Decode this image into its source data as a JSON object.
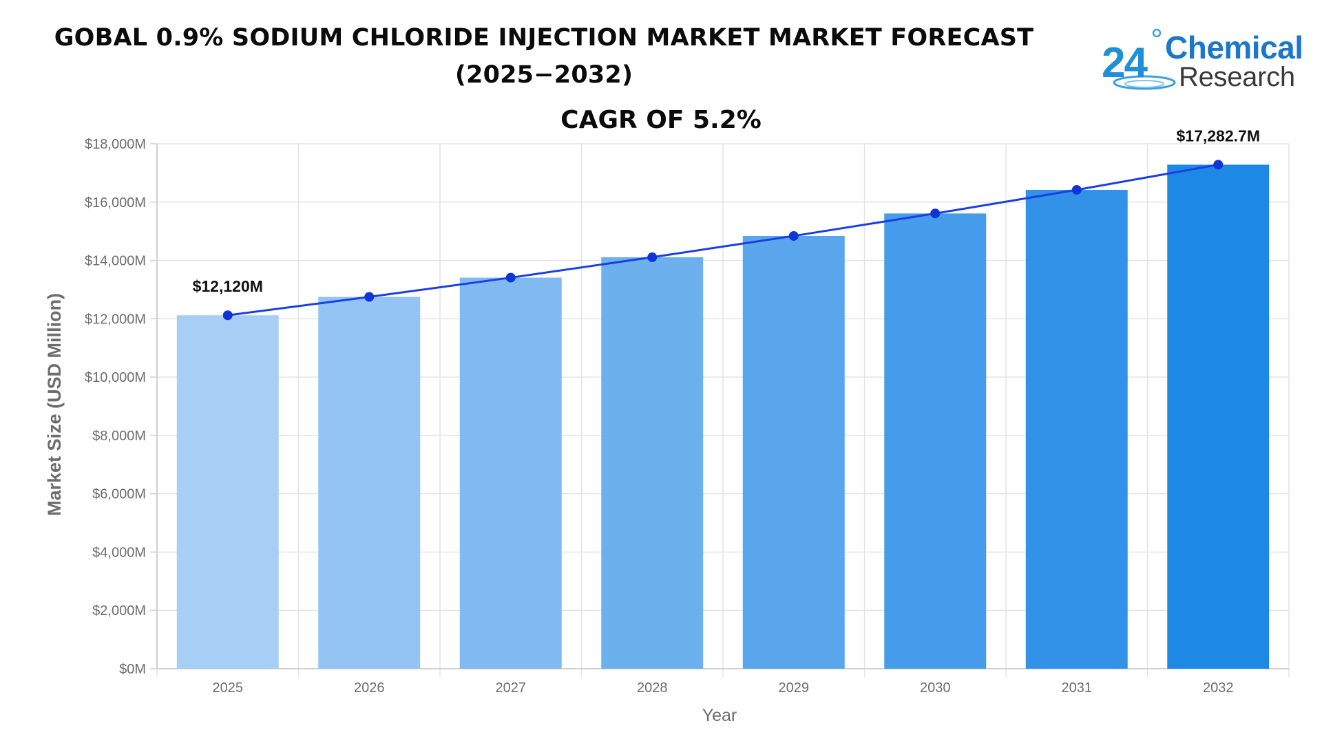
{
  "title_line1": "GOBAL 0.9% SODIUM CHLORIDE INJECTION MARKET MARKET FORECAST",
  "title_line2": "(2025−2032)",
  "cagr": "CAGR OF 5.2%",
  "logo": {
    "number": "24",
    "line1": "Chemical",
    "line2": "Research"
  },
  "colors": {
    "line": "#1a3fe0",
    "point": "#1034d8",
    "bar_start": "#a7cef5",
    "bar_end": "#1e88e5",
    "grid": "#e3e3e3"
  },
  "chart_data": {
    "type": "bar",
    "categories": [
      "2025",
      "2026",
      "2027",
      "2028",
      "2029",
      "2030",
      "2031",
      "2032"
    ],
    "series": [
      {
        "values": [
          12120,
          12750,
          13410,
          14110,
          14840,
          15610,
          16420,
          17282.7
        ]
      }
    ],
    "overlay": "line with markers following bar values",
    "xlabel": "Year",
    "ylabel": "Market Size (USD Million)",
    "ylim": [
      0,
      18000
    ],
    "yticks": [
      0,
      2000,
      4000,
      6000,
      8000,
      10000,
      12000,
      14000,
      16000,
      18000
    ],
    "ytick_labels": [
      "$0M",
      "$2,000M",
      "$4,000M",
      "$6,000M",
      "$8,000M",
      "$10,000M",
      "$12,000M",
      "$14,000M",
      "$16,000M",
      "$18,000M"
    ],
    "annotations": [
      {
        "category": "2025",
        "text": "$12,120M"
      },
      {
        "category": "2032",
        "text": "$17,282.7M"
      }
    ],
    "grid": true,
    "legend": "none"
  }
}
